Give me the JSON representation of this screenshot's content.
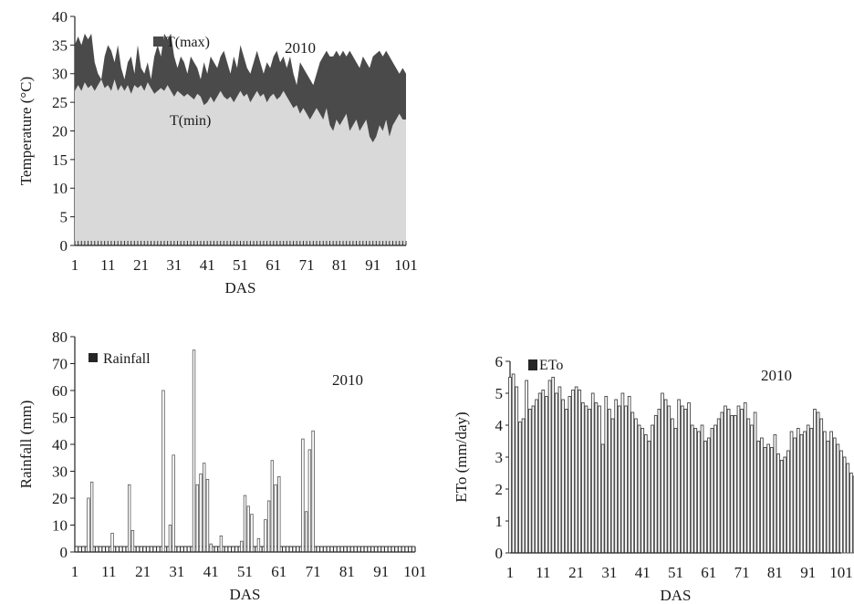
{
  "chart_data": [
    {
      "id": "temperature",
      "type": "area",
      "ylabel": "Temperature (°C)",
      "xlabel": "DAS",
      "year_label": "2010",
      "ylim": [
        0,
        40
      ],
      "yticks": [
        0,
        5,
        10,
        15,
        20,
        25,
        30,
        35,
        40
      ],
      "xticks": [
        1,
        11,
        21,
        31,
        41,
        51,
        61,
        71,
        81,
        91,
        101
      ],
      "xlim": [
        1,
        101
      ],
      "grid": false,
      "legend": "top-left",
      "colors": {
        "tmax": "#4a4a4a",
        "tmin": "#d9d9d9"
      },
      "series": [
        {
          "name": "T(max)",
          "key": "tmax",
          "points": [
            [
              1,
              35
            ],
            [
              2,
              36.5
            ],
            [
              3,
              35
            ],
            [
              4,
              37
            ],
            [
              5,
              36
            ],
            [
              6,
              37
            ],
            [
              7,
              32
            ],
            [
              8,
              30
            ],
            [
              9,
              29
            ],
            [
              10,
              33
            ],
            [
              11,
              35
            ],
            [
              12,
              34
            ],
            [
              13,
              32
            ],
            [
              14,
              35
            ],
            [
              15,
              31
            ],
            [
              16,
              29
            ],
            [
              17,
              32
            ],
            [
              18,
              33
            ],
            [
              19,
              30
            ],
            [
              20,
              35
            ],
            [
              21,
              31
            ],
            [
              22,
              30
            ],
            [
              23,
              32
            ],
            [
              24,
              29
            ],
            [
              25,
              33
            ],
            [
              26,
              35
            ],
            [
              27,
              33
            ],
            [
              28,
              37
            ],
            [
              29,
              36
            ],
            [
              30,
              37
            ],
            [
              31,
              33
            ],
            [
              32,
              31
            ],
            [
              33,
              33
            ],
            [
              34,
              32
            ],
            [
              35,
              30
            ],
            [
              36,
              33
            ],
            [
              37,
              32
            ],
            [
              38,
              31
            ],
            [
              39,
              29
            ],
            [
              40,
              32
            ],
            [
              41,
              30
            ],
            [
              42,
              33
            ],
            [
              43,
              32
            ],
            [
              44,
              31
            ],
            [
              45,
              33
            ],
            [
              46,
              34
            ],
            [
              47,
              32
            ],
            [
              48,
              30
            ],
            [
              49,
              33
            ],
            [
              50,
              31
            ],
            [
              51,
              35
            ],
            [
              52,
              33
            ],
            [
              53,
              31
            ],
            [
              54,
              30
            ],
            [
              55,
              32
            ],
            [
              56,
              34
            ],
            [
              57,
              32
            ],
            [
              58,
              30
            ],
            [
              59,
              32
            ],
            [
              60,
              31
            ],
            [
              61,
              33
            ],
            [
              62,
              34
            ],
            [
              63,
              32
            ],
            [
              64,
              33
            ],
            [
              65,
              31
            ],
            [
              66,
              33
            ],
            [
              67,
              30
            ],
            [
              68,
              28
            ],
            [
              69,
              32
            ],
            [
              70,
              31
            ],
            [
              71,
              30
            ],
            [
              72,
              29
            ],
            [
              73,
              28
            ],
            [
              74,
              30
            ],
            [
              75,
              32
            ],
            [
              76,
              33
            ],
            [
              77,
              34
            ],
            [
              78,
              33
            ],
            [
              79,
              33
            ],
            [
              80,
              34
            ],
            [
              81,
              33
            ],
            [
              82,
              34
            ],
            [
              83,
              33
            ],
            [
              84,
              34
            ],
            [
              85,
              33
            ],
            [
              86,
              32
            ],
            [
              87,
              31
            ],
            [
              88,
              33
            ],
            [
              89,
              32
            ],
            [
              90,
              31
            ],
            [
              91,
              33
            ],
            [
              92,
              33.5
            ],
            [
              93,
              34
            ],
            [
              94,
              33
            ],
            [
              95,
              34
            ],
            [
              96,
              33
            ],
            [
              97,
              32
            ],
            [
              98,
              31
            ],
            [
              99,
              30
            ],
            [
              100,
              31
            ],
            [
              101,
              30
            ]
          ]
        },
        {
          "name": "T(min)",
          "key": "tmin",
          "points": [
            [
              1,
              27
            ],
            [
              2,
              28
            ],
            [
              3,
              27
            ],
            [
              4,
              28.5
            ],
            [
              5,
              27.5
            ],
            [
              6,
              28
            ],
            [
              7,
              27
            ],
            [
              8,
              28
            ],
            [
              9,
              29
            ],
            [
              10,
              27.5
            ],
            [
              11,
              28
            ],
            [
              12,
              27
            ],
            [
              13,
              29
            ],
            [
              14,
              27
            ],
            [
              15,
              28
            ],
            [
              16,
              27
            ],
            [
              17,
              28
            ],
            [
              18,
              26.5
            ],
            [
              19,
              28
            ],
            [
              20,
              27.5
            ],
            [
              21,
              28
            ],
            [
              22,
              27
            ],
            [
              23,
              28.5
            ],
            [
              24,
              27.5
            ],
            [
              25,
              26.5
            ],
            [
              26,
              27
            ],
            [
              27,
              27.5
            ],
            [
              28,
              27
            ],
            [
              29,
              28
            ],
            [
              30,
              27
            ],
            [
              31,
              26
            ],
            [
              32,
              27
            ],
            [
              33,
              26.5
            ],
            [
              34,
              26
            ],
            [
              35,
              26.5
            ],
            [
              36,
              26
            ],
            [
              37,
              25.5
            ],
            [
              38,
              26.5
            ],
            [
              39,
              26
            ],
            [
              40,
              24.5
            ],
            [
              41,
              25
            ],
            [
              42,
              26
            ],
            [
              43,
              25
            ],
            [
              44,
              26
            ],
            [
              45,
              27
            ],
            [
              46,
              26
            ],
            [
              47,
              25.5
            ],
            [
              48,
              26
            ],
            [
              49,
              25
            ],
            [
              50,
              26
            ],
            [
              51,
              27
            ],
            [
              52,
              26
            ],
            [
              53,
              26.5
            ],
            [
              54,
              25
            ],
            [
              55,
              26
            ],
            [
              56,
              27
            ],
            [
              57,
              26
            ],
            [
              58,
              26.5
            ],
            [
              59,
              25
            ],
            [
              60,
              26
            ],
            [
              61,
              26.5
            ],
            [
              62,
              25.5
            ],
            [
              63,
              26
            ],
            [
              64,
              27
            ],
            [
              65,
              26
            ],
            [
              66,
              25
            ],
            [
              67,
              24
            ],
            [
              68,
              24.5
            ],
            [
              69,
              23
            ],
            [
              70,
              24
            ],
            [
              71,
              23
            ],
            [
              72,
              22
            ],
            [
              73,
              23
            ],
            [
              74,
              24
            ],
            [
              75,
              23
            ],
            [
              76,
              22
            ],
            [
              77,
              24
            ],
            [
              78,
              21
            ],
            [
              79,
              20
            ],
            [
              80,
              22
            ],
            [
              81,
              21
            ],
            [
              82,
              22
            ],
            [
              83,
              23
            ],
            [
              84,
              20
            ],
            [
              85,
              21
            ],
            [
              86,
              22
            ],
            [
              87,
              20
            ],
            [
              88,
              21
            ],
            [
              89,
              22
            ],
            [
              90,
              19
            ],
            [
              91,
              18
            ],
            [
              92,
              19
            ],
            [
              93,
              21
            ],
            [
              94,
              20
            ],
            [
              95,
              22
            ],
            [
              96,
              19
            ],
            [
              97,
              21
            ],
            [
              98,
              22
            ],
            [
              99,
              23
            ],
            [
              100,
              22
            ],
            [
              101,
              22
            ]
          ]
        }
      ]
    },
    {
      "id": "rainfall",
      "type": "bar",
      "ylabel": "Rainfall (mm)",
      "xlabel": "DAS",
      "year_label": "2010",
      "ylim": [
        0,
        80
      ],
      "yticks": [
        0,
        10,
        20,
        30,
        40,
        50,
        60,
        70,
        80
      ],
      "xticks": [
        1,
        11,
        21,
        31,
        41,
        51,
        61,
        71,
        81,
        91,
        101
      ],
      "xlim": [
        1,
        101
      ],
      "grid": false,
      "legend": "top-left",
      "series": [
        {
          "name": "Rainfall",
          "color": "#262626"
        }
      ],
      "bars": [
        [
          5,
          20
        ],
        [
          6,
          26
        ],
        [
          12,
          7
        ],
        [
          17,
          25
        ],
        [
          18,
          8
        ],
        [
          27,
          60
        ],
        [
          29,
          10
        ],
        [
          30,
          36
        ],
        [
          36,
          75
        ],
        [
          37,
          25
        ],
        [
          38,
          29
        ],
        [
          39,
          33
        ],
        [
          40,
          27
        ],
        [
          41,
          3
        ],
        [
          44,
          6
        ],
        [
          50,
          4
        ],
        [
          51,
          21
        ],
        [
          52,
          17
        ],
        [
          53,
          14
        ],
        [
          55,
          5
        ],
        [
          57,
          12
        ],
        [
          58,
          19
        ],
        [
          59,
          34
        ],
        [
          60,
          25
        ],
        [
          61,
          28
        ],
        [
          68,
          42
        ],
        [
          69,
          15
        ],
        [
          70,
          38
        ],
        [
          71,
          45
        ]
      ]
    },
    {
      "id": "eto",
      "type": "bar",
      "ylabel": "ETo (mm/day)",
      "xlabel": "DAS",
      "year_label": "2010",
      "ylim": [
        0,
        6
      ],
      "yticks": [
        0,
        1,
        2,
        3,
        4,
        5,
        6
      ],
      "xticks": [
        1,
        11,
        21,
        31,
        41,
        51,
        61,
        71,
        81,
        91,
        101
      ],
      "xlim": [
        1,
        101
      ],
      "grid": false,
      "legend": "top-left",
      "series": [
        {
          "name": "ETo",
          "color": "#262626"
        }
      ],
      "values": [
        5.5,
        5.6,
        5.2,
        4.1,
        4.2,
        5.4,
        4.5,
        4.6,
        4.8,
        5.0,
        5.1,
        4.9,
        5.4,
        5.5,
        5.0,
        5.2,
        4.8,
        4.5,
        4.9,
        5.1,
        5.2,
        5.1,
        4.7,
        4.6,
        4.5,
        5.0,
        4.7,
        4.6,
        3.4,
        4.9,
        4.5,
        4.2,
        4.8,
        4.6,
        5.0,
        4.6,
        4.9,
        4.4,
        4.2,
        4.0,
        3.9,
        3.7,
        3.5,
        4.0,
        4.3,
        4.5,
        5.0,
        4.8,
        4.6,
        4.2,
        3.9,
        4.8,
        4.6,
        4.5,
        4.7,
        4.0,
        3.9,
        3.8,
        4.0,
        3.5,
        3.6,
        3.9,
        4.0,
        4.2,
        4.4,
        4.6,
        4.5,
        4.3,
        4.3,
        4.6,
        4.5,
        4.7,
        4.2,
        4.0,
        4.4,
        3.5,
        3.6,
        3.3,
        3.4,
        3.3,
        3.7,
        3.1,
        2.9,
        3.0,
        3.2,
        3.8,
        3.6,
        3.9,
        3.7,
        3.8,
        4.0,
        3.9,
        4.5,
        4.4,
        4.2,
        3.8,
        3.5,
        3.8,
        3.6,
        3.4,
        3.2,
        3.0,
        2.8,
        2.5,
        2.4
      ]
    }
  ]
}
